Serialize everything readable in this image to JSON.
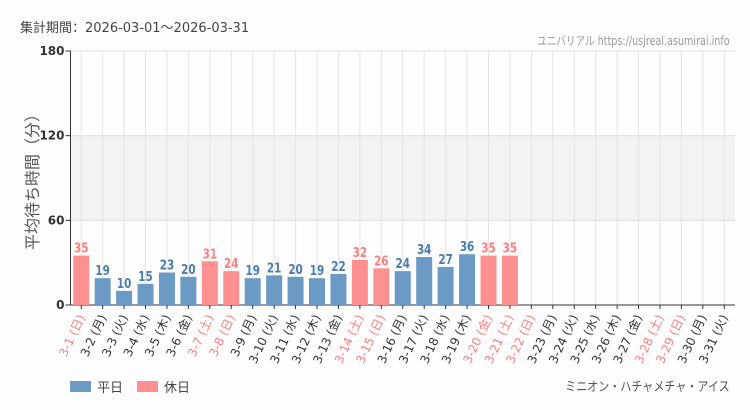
{
  "header": {
    "period": "集計期間：2026-03-01～2026-03-31",
    "site": "ユニバリアル  https://usjreal.asumirai.info"
  },
  "footer": {
    "attraction": "ミニオン・ハチャメチャ・アイス"
  },
  "colors": {
    "weekday": "#6b9ac4",
    "holiday": "#ff9090",
    "holiday_text": "#ff7f7f",
    "weekday_text": "#4a7cb0"
  },
  "chart_data": {
    "type": "bar",
    "ylabel": "平均待ち時間（分）",
    "ylim": [
      0,
      180
    ],
    "yticks": [
      0,
      60,
      120,
      180
    ],
    "legend": [
      {
        "name": "平日",
        "key": "weekday"
      },
      {
        "name": "休日",
        "key": "holiday"
      }
    ],
    "legend_position": "bottom-left",
    "categories": [
      "3-1 (日)",
      "3-2 (月)",
      "3-3 (火)",
      "3-4 (水)",
      "3-5 (木)",
      "3-6 (金)",
      "3-7 (土)",
      "3-8 (日)",
      "3-9 (月)",
      "3-10 (火)",
      "3-11 (水)",
      "3-12 (木)",
      "3-13 (金)",
      "3-14 (土)",
      "3-15 (日)",
      "3-16 (月)",
      "3-17 (火)",
      "3-18 (水)",
      "3-19 (木)",
      "3-20 (金)",
      "3-21 (土)",
      "3-22 (日)",
      "3-23 (月)",
      "3-24 (火)",
      "3-25 (水)",
      "3-26 (木)",
      "3-27 (金)",
      "3-28 (土)",
      "3-29 (日)",
      "3-30 (月)",
      "3-31 (火)"
    ],
    "holiday": [
      1,
      0,
      0,
      0,
      0,
      0,
      1,
      1,
      0,
      0,
      0,
      0,
      0,
      1,
      1,
      0,
      0,
      0,
      0,
      1,
      1,
      1,
      0,
      0,
      0,
      0,
      0,
      1,
      1,
      0,
      0
    ],
    "values": [
      35,
      19,
      10,
      15,
      23,
      20,
      31,
      24,
      19,
      21,
      20,
      19,
      22,
      32,
      26,
      24,
      34,
      27,
      36,
      35,
      35,
      null,
      null,
      null,
      null,
      null,
      null,
      null,
      null,
      null,
      null
    ]
  }
}
